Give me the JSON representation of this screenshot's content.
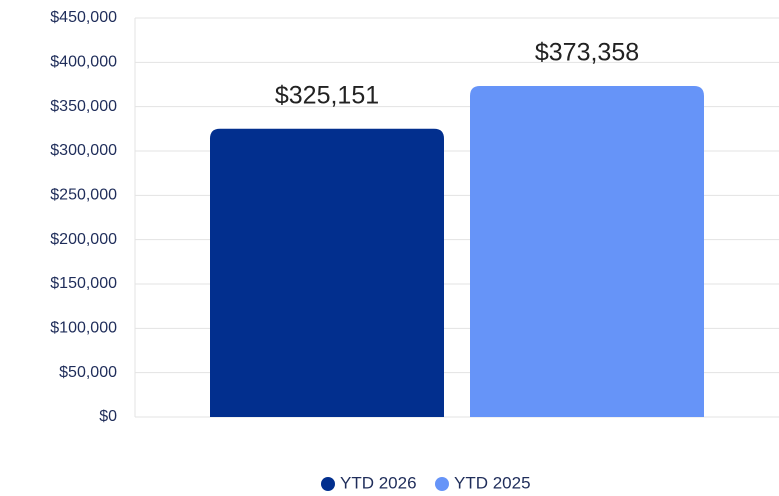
{
  "chart_data": {
    "type": "bar",
    "categories": [
      null
    ],
    "series": [
      {
        "name": "YTD 2026",
        "color": "#022f8e",
        "values": [
          325151
        ],
        "value_labels": [
          "$325,151"
        ]
      },
      {
        "name": "YTD 2025",
        "color": "#6694f8",
        "values": [
          373358
        ],
        "value_labels": [
          "$373,358"
        ]
      }
    ],
    "ylim": [
      0,
      450000
    ],
    "yticks": [
      {
        "value": 0,
        "label": "$0"
      },
      {
        "value": 50000,
        "label": "$50,000"
      },
      {
        "value": 100000,
        "label": "$100,000"
      },
      {
        "value": 150000,
        "label": "$150,000"
      },
      {
        "value": 200000,
        "label": "$200,000"
      },
      {
        "value": 250000,
        "label": "$250,000"
      },
      {
        "value": 300000,
        "label": "$300,000"
      },
      {
        "value": 350000,
        "label": "$350,000"
      },
      {
        "value": 400000,
        "label": "$400,000"
      },
      {
        "value": 450000,
        "label": "$450,000"
      }
    ],
    "grid": true,
    "legend": "bottom"
  }
}
